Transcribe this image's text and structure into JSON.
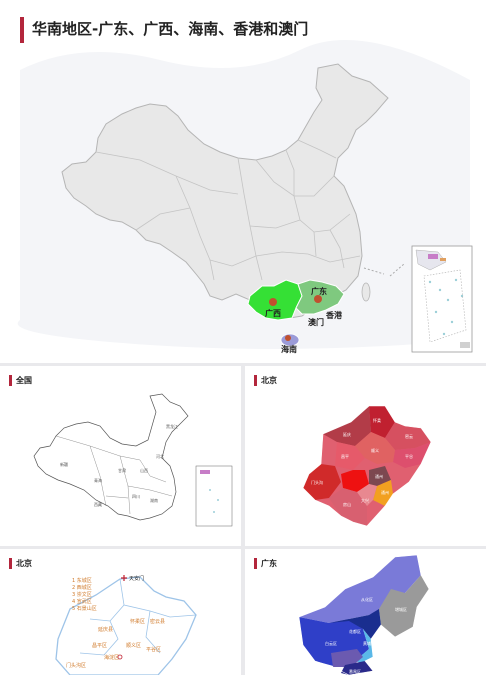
{
  "main": {
    "title": "华南地区-广东、广西、海南、香港和澳门",
    "labels": {
      "guangdong": "广东",
      "guangxi": "广西",
      "hainan": "海南",
      "hongkong": "香港",
      "macau": "澳门"
    },
    "colors": {
      "guangxi": "#35e035",
      "guangdong": "#7fc97f",
      "hainan": "#9b9bd8",
      "capital_dot": "#c0502e",
      "china_fill": "#e8e8e8",
      "china_stroke": "#b8b8b8"
    }
  },
  "thumbs": [
    {
      "title": "全国"
    },
    {
      "title": "北京"
    },
    {
      "title": "北京"
    },
    {
      "title": "广东"
    }
  ],
  "beijing_legend": [
    "1 东城区",
    "2 西城区",
    "3 崇文区",
    "4 宣武区",
    "5 石景山区"
  ],
  "beijing_marker": "天安门"
}
